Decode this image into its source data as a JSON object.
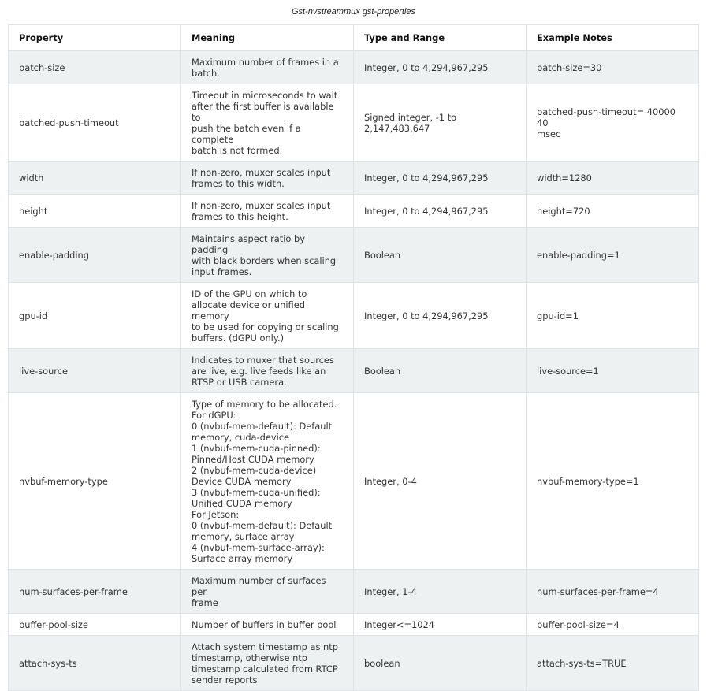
{
  "caption": "Gst-nvstreammux gst-properties",
  "table": {
    "headers": [
      "Property",
      "Meaning",
      "Type and Range",
      "Example Notes"
    ],
    "rows": [
      [
        "batch-size",
        "Maximum number of frames in a\nbatch.",
        "Integer, 0 to 4,294,967,295",
        "batch-size=30"
      ],
      [
        "batched-push-timeout",
        "Timeout in microseconds to wait\nafter the first buffer is available to\npush the batch even if a complete\nbatch is not formed.",
        "Signed integer, -1 to\n2,147,483,647",
        "batched-push-timeout= 40000 40\nmsec"
      ],
      [
        "width",
        "If non-zero, muxer scales input\nframes to this width.",
        "Integer, 0 to 4,294,967,295",
        "width=1280"
      ],
      [
        "height",
        "If non-zero, muxer scales input\nframes to this height.",
        "Integer, 0 to 4,294,967,295",
        "height=720"
      ],
      [
        "enable-padding",
        "Maintains aspect ratio by padding\nwith black borders when scaling\ninput frames.",
        "Boolean",
        "enable-padding=1"
      ],
      [
        "gpu-id",
        "ID of the GPU on which to\nallocate device or unified memory\nto be used for copying or scaling\nbuffers. (dGPU only.)",
        "Integer, 0 to 4,294,967,295",
        "gpu-id=1"
      ],
      [
        "live-source",
        "Indicates to muxer that sources\nare live, e.g. live feeds like an\nRTSP or USB camera.",
        "Boolean",
        "live-source=1"
      ],
      [
        "nvbuf-memory-type",
        "Type of memory to be allocated.\nFor dGPU:\n0 (nvbuf-mem-default): Default\nmemory, cuda-device\n1 (nvbuf-mem-cuda-pinned):\nPinned/Host CUDA memory\n2 (nvbuf-mem-cuda-device)\nDevice CUDA memory\n3 (nvbuf-mem-cuda-unified):\nUnified CUDA memory\nFor Jetson:\n0 (nvbuf-mem-default): Default\nmemory, surface array\n4 (nvbuf-mem-surface-array):\nSurface array memory",
        "Integer, 0-4",
        "nvbuf-memory-type=1"
      ],
      [
        "num-surfaces-per-frame",
        "Maximum number of surfaces per\nframe",
        "Integer, 1-4",
        "num-surfaces-per-frame=4"
      ],
      [
        "buffer-pool-size",
        "Number of buffers in buffer pool",
        "Integer<=1024",
        "buffer-pool-size=4"
      ],
      [
        "attach-sys-ts",
        "Attach system timestamp as ntp\ntimestamp, otherwise ntp\ntimestamp calculated from RTCP\nsender reports",
        "boolean",
        "attach-sys-ts=TRUE"
      ]
    ]
  }
}
